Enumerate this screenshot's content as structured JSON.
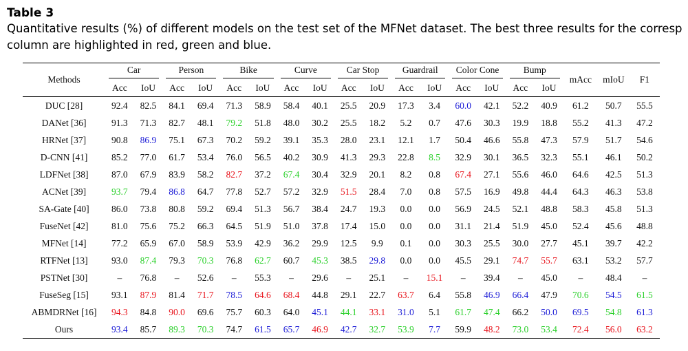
{
  "caption": {
    "title": "Table 3",
    "line1": "Quantitative results (%) of different models on the test set of the MFNet dataset. The best three results for the corresp",
    "line2": "column are highlighted in red, green and blue."
  },
  "colors": {
    "red": "#e8141c",
    "green": "#2bd02b",
    "blue": "#1b1bd6",
    "default": "#111111"
  },
  "table": {
    "methods_header": "Methods",
    "groups": [
      "Car",
      "Person",
      "Bike",
      "Curve",
      "Car Stop",
      "Guardrail",
      "Color Cone",
      "Bump"
    ],
    "sub_headers": [
      "Acc",
      "IoU"
    ],
    "summary_headers": [
      "mAcc",
      "mIoU",
      "F1"
    ],
    "rows": [
      {
        "method": "DUC [28]",
        "values": [
          "92.4",
          "82.5",
          "84.1",
          "69.4",
          "71.3",
          "58.9",
          "58.4",
          "40.1",
          "25.5",
          "20.9",
          "17.3",
          "3.4",
          "60.0",
          "42.1",
          "52.2",
          "40.9",
          "61.2",
          "50.7",
          "55.5"
        ],
        "colors": [
          "",
          "",
          "",
          "",
          "",
          "",
          "",
          "",
          "",
          "",
          "",
          "",
          "b",
          "",
          "",
          "",
          "",
          "",
          ""
        ]
      },
      {
        "method": "DANet [36]",
        "values": [
          "91.3",
          "71.3",
          "82.7",
          "48.1",
          "79.2",
          "51.8",
          "48.0",
          "30.2",
          "25.5",
          "18.2",
          "5.2",
          "0.7",
          "47.6",
          "30.3",
          "19.9",
          "18.8",
          "55.2",
          "41.3",
          "47.2"
        ],
        "colors": [
          "",
          "",
          "",
          "",
          "g",
          "",
          "",
          "",
          "",
          "",
          "",
          "",
          "",
          "",
          "",
          "",
          "",
          "",
          ""
        ]
      },
      {
        "method": "HRNet [37]",
        "values": [
          "90.8",
          "86.9",
          "75.1",
          "67.3",
          "70.2",
          "59.2",
          "39.1",
          "35.3",
          "28.0",
          "23.1",
          "12.1",
          "1.7",
          "50.4",
          "46.6",
          "55.8",
          "47.3",
          "57.9",
          "51.7",
          "54.6"
        ],
        "colors": [
          "",
          "b",
          "",
          "",
          "",
          "",
          "",
          "",
          "",
          "",
          "",
          "",
          "",
          "",
          "",
          "",
          "",
          "",
          ""
        ]
      },
      {
        "method": "D-CNN [41]",
        "values": [
          "85.2",
          "77.0",
          "61.7",
          "53.4",
          "76.0",
          "56.5",
          "40.2",
          "30.9",
          "41.3",
          "29.3",
          "22.8",
          "8.5",
          "32.9",
          "30.1",
          "36.5",
          "32.3",
          "55.1",
          "46.1",
          "50.2"
        ],
        "colors": [
          "",
          "",
          "",
          "",
          "",
          "",
          "",
          "",
          "",
          "",
          "",
          "g",
          "",
          "",
          "",
          "",
          "",
          "",
          ""
        ]
      },
      {
        "method": "LDFNet [38]",
        "values": [
          "87.0",
          "67.9",
          "83.9",
          "58.2",
          "82.7",
          "37.2",
          "67.4",
          "30.4",
          "32.9",
          "20.1",
          "8.2",
          "0.8",
          "67.4",
          "27.1",
          "55.6",
          "46.0",
          "64.6",
          "42.5",
          "51.3"
        ],
        "colors": [
          "",
          "",
          "",
          "",
          "r",
          "",
          "g",
          "",
          "",
          "",
          "",
          "",
          "r",
          "",
          "",
          "",
          "",
          "",
          ""
        ]
      },
      {
        "method": "ACNet [39]",
        "values": [
          "93.7",
          "79.4",
          "86.8",
          "64.7",
          "77.8",
          "52.7",
          "57.2",
          "32.9",
          "51.5",
          "28.4",
          "7.0",
          "0.8",
          "57.5",
          "16.9",
          "49.8",
          "44.4",
          "64.3",
          "46.3",
          "53.8"
        ],
        "colors": [
          "g",
          "",
          "b",
          "",
          "",
          "",
          "",
          "",
          "r",
          "",
          "",
          "",
          "",
          "",
          "",
          "",
          "",
          "",
          ""
        ]
      },
      {
        "method": "SA-Gate [40]",
        "values": [
          "86.0",
          "73.8",
          "80.8",
          "59.2",
          "69.4",
          "51.3",
          "56.7",
          "38.4",
          "24.7",
          "19.3",
          "0.0",
          "0.0",
          "56.9",
          "24.5",
          "52.1",
          "48.8",
          "58.3",
          "45.8",
          "51.3"
        ],
        "colors": [
          "",
          "",
          "",
          "",
          "",
          "",
          "",
          "",
          "",
          "",
          "",
          "",
          "",
          "",
          "",
          "",
          "",
          "",
          ""
        ]
      },
      {
        "method": "FuseNet [42]",
        "values": [
          "81.0",
          "75.6",
          "75.2",
          "66.3",
          "64.5",
          "51.9",
          "51.0",
          "37.8",
          "17.4",
          "15.0",
          "0.0",
          "0.0",
          "31.1",
          "21.4",
          "51.9",
          "45.0",
          "52.4",
          "45.6",
          "48.8"
        ],
        "colors": [
          "",
          "",
          "",
          "",
          "",
          "",
          "",
          "",
          "",
          "",
          "",
          "",
          "",
          "",
          "",
          "",
          "",
          "",
          ""
        ]
      },
      {
        "method": "MFNet [14]",
        "values": [
          "77.2",
          "65.9",
          "67.0",
          "58.9",
          "53.9",
          "42.9",
          "36.2",
          "29.9",
          "12.5",
          "9.9",
          "0.1",
          "0.0",
          "30.3",
          "25.5",
          "30.0",
          "27.7",
          "45.1",
          "39.7",
          "42.2"
        ],
        "colors": [
          "",
          "",
          "",
          "",
          "",
          "",
          "",
          "",
          "",
          "",
          "",
          "",
          "",
          "",
          "",
          "",
          "",
          "",
          ""
        ]
      },
      {
        "method": "RTFNet [13]",
        "values": [
          "93.0",
          "87.4",
          "79.3",
          "70.3",
          "76.8",
          "62.7",
          "60.7",
          "45.3",
          "38.5",
          "29.8",
          "0.0",
          "0.0",
          "45.5",
          "29.1",
          "74.7",
          "55.7",
          "63.1",
          "53.2",
          "57.7"
        ],
        "colors": [
          "",
          "g",
          "",
          "g",
          "",
          "g",
          "",
          "g",
          "",
          "b",
          "",
          "",
          "",
          "",
          "r",
          "r",
          "",
          "",
          ""
        ]
      },
      {
        "method": "PSTNet [30]",
        "values": [
          "–",
          "76.8",
          "–",
          "52.6",
          "–",
          "55.3",
          "–",
          "29.6",
          "–",
          "25.1",
          "–",
          "15.1",
          "–",
          "39.4",
          "–",
          "45.0",
          "–",
          "48.4",
          "–"
        ],
        "colors": [
          "",
          "",
          "",
          "",
          "",
          "",
          "",
          "",
          "",
          "",
          "",
          "r",
          "",
          "",
          "",
          "",
          "",
          "",
          ""
        ]
      },
      {
        "method": "FuseSeg [15]",
        "values": [
          "93.1",
          "87.9",
          "81.4",
          "71.7",
          "78.5",
          "64.6",
          "68.4",
          "44.8",
          "29.1",
          "22.7",
          "63.7",
          "6.4",
          "55.8",
          "46.9",
          "66.4",
          "47.9",
          "70.6",
          "54.5",
          "61.5"
        ],
        "colors": [
          "",
          "r",
          "",
          "r",
          "b",
          "r",
          "r",
          "",
          "",
          "",
          "r",
          "",
          "",
          "b",
          "b",
          "",
          "g",
          "b",
          "g"
        ]
      },
      {
        "method": "ABMDRNet [16]",
        "values": [
          "94.3",
          "84.8",
          "90.0",
          "69.6",
          "75.7",
          "60.3",
          "64.0",
          "45.1",
          "44.1",
          "33.1",
          "31.0",
          "5.1",
          "61.7",
          "47.4",
          "66.2",
          "50.0",
          "69.5",
          "54.8",
          "61.3"
        ],
        "colors": [
          "r",
          "",
          "r",
          "",
          "",
          "",
          "",
          "b",
          "g",
          "r",
          "b",
          "",
          "g",
          "g",
          "",
          "b",
          "b",
          "g",
          "b"
        ]
      },
      {
        "method": "Ours",
        "values": [
          "93.4",
          "85.7",
          "89.3",
          "70.3",
          "74.7",
          "61.5",
          "65.7",
          "46.9",
          "42.7",
          "32.7",
          "53.9",
          "7.7",
          "59.9",
          "48.2",
          "73.0",
          "53.4",
          "72.4",
          "56.0",
          "63.2"
        ],
        "colors": [
          "b",
          "",
          "g",
          "g",
          "",
          "b",
          "b",
          "r",
          "b",
          "g",
          "g",
          "b",
          "",
          "r",
          "g",
          "g",
          "r",
          "r",
          "r"
        ]
      }
    ]
  }
}
